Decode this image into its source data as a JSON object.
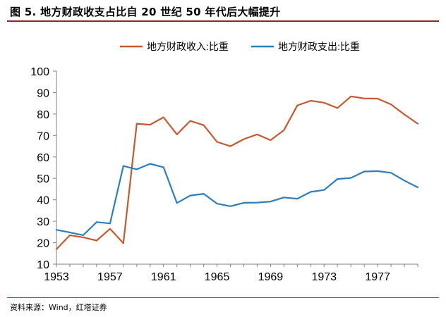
{
  "header": {
    "title": "图 5. 地方财政收支占比自 20 世纪 50 年代后大幅提升"
  },
  "footer": {
    "source": "资料来源：Wind，红塔证券"
  },
  "colors": {
    "income": "#C65A2E",
    "expenditure": "#2A7FBF",
    "axis": "#808080",
    "title_rule": "#8a2a2a"
  },
  "chart_data": {
    "type": "line",
    "title": "",
    "xlabel": "",
    "ylabel": "",
    "ylim": [
      10,
      100
    ],
    "xlim": [
      1953,
      1980
    ],
    "yticks": [
      10,
      20,
      30,
      40,
      50,
      60,
      70,
      80,
      90,
      100
    ],
    "xticks": [
      1953,
      1957,
      1961,
      1965,
      1969,
      1973,
      1977
    ],
    "grid": false,
    "legend_position": "top-center",
    "x": [
      1953,
      1954,
      1955,
      1956,
      1957,
      1958,
      1959,
      1960,
      1961,
      1962,
      1963,
      1964,
      1965,
      1966,
      1967,
      1968,
      1969,
      1970,
      1971,
      1972,
      1973,
      1974,
      1975,
      1976,
      1977,
      1978,
      1979,
      1980
    ],
    "series": [
      {
        "name": "地方财政收入:比重",
        "color": "#C65A2E",
        "values": [
          17,
          23.5,
          22.5,
          21,
          26.5,
          19.8,
          75.5,
          75,
          78.5,
          70.5,
          76.8,
          74.8,
          67,
          65,
          68.3,
          70.5,
          67.8,
          72.5,
          84,
          86.2,
          85.3,
          82.8,
          88.2,
          87.3,
          87.2,
          84.5,
          79.8,
          75.5
        ]
      },
      {
        "name": "地方财政支出:比重",
        "color": "#2A7FBF",
        "values": [
          26,
          24.8,
          23.5,
          29.6,
          29,
          55.8,
          54.2,
          56.8,
          55.2,
          38.5,
          42,
          42.8,
          38.2,
          37,
          38.6,
          38.7,
          39.2,
          41.1,
          40.5,
          43.7,
          44.6,
          49.7,
          50.2,
          53.2,
          53.4,
          52.6,
          49,
          45.8
        ]
      }
    ]
  }
}
